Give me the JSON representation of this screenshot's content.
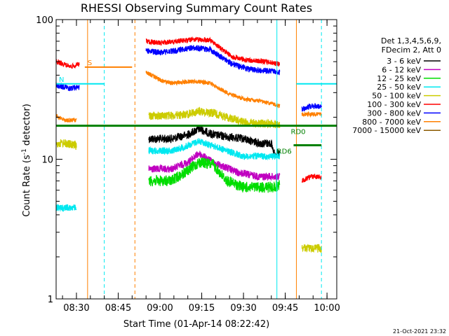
{
  "chart_data": {
    "type": "line",
    "title": "RHESSI Observing Summary Count Rates",
    "xlabel": "Start Time (01-Apr-14 08:22:42)",
    "ylabel_main": "Count Rate (s",
    "ylabel_superscript": "-1",
    "ylabel_close": " detector)",
    "timestamp": "21-Oct-2021 23:32",
    "y_scale": "log",
    "ylim": [
      1,
      100
    ],
    "y_ticks": [
      {
        "value": 1,
        "label": "1"
      },
      {
        "value": 10,
        "label": "10"
      },
      {
        "value": 100,
        "label": "100"
      }
    ],
    "xlim": [
      "08:22:42",
      "10:03:30"
    ],
    "x_ticks": [
      {
        "time": "08:30",
        "label": "08:30"
      },
      {
        "time": "08:45",
        "label": "08:45"
      },
      {
        "time": "09:00",
        "label": "09:00"
      },
      {
        "time": "09:15",
        "label": "09:15"
      },
      {
        "time": "09:30",
        "label": "09:30"
      },
      {
        "time": "09:45",
        "label": "09:45"
      },
      {
        "time": "10:00",
        "label": "10:00"
      }
    ],
    "legend_position": "right",
    "legend_header": [
      "Det 1,3,4,5,6,9,",
      "FDecim 2, Att 0"
    ],
    "series": [
      {
        "name": "3 - 6 keV",
        "color": "#000000",
        "noise": 1.0,
        "points": [
          [
            "08:54",
            null
          ],
          [
            "08:56",
            14
          ],
          [
            "09:04",
            14
          ],
          [
            "09:10",
            15
          ],
          [
            "09:14",
            16.5
          ],
          [
            "09:19",
            15
          ],
          [
            "09:24",
            14.5
          ],
          [
            "09:30",
            14
          ],
          [
            "09:36",
            13
          ],
          [
            "09:40",
            13
          ],
          [
            "09:41",
            11
          ],
          [
            "09:43",
            11
          ],
          [
            "09:44",
            null
          ]
        ]
      },
      {
        "name": "6 - 12 keV",
        "color": "#c000c0",
        "noise": 0.9,
        "points": [
          [
            "08:54",
            null
          ],
          [
            "08:56",
            8.5
          ],
          [
            "09:04",
            8.5
          ],
          [
            "09:10",
            9.5
          ],
          [
            "09:14",
            11
          ],
          [
            "09:19",
            9.5
          ],
          [
            "09:24",
            8.7
          ],
          [
            "09:28",
            8
          ],
          [
            "09:36",
            7.5
          ],
          [
            "09:40",
            7.5
          ],
          [
            "09:43",
            7.5
          ],
          [
            "09:44",
            null
          ]
        ]
      },
      {
        "name": "12 - 25 keV",
        "color": "#00dd00",
        "noise": 1.3,
        "points": [
          [
            "08:54",
            null
          ],
          [
            "08:56",
            7
          ],
          [
            "09:04",
            7
          ],
          [
            "09:10",
            8.3
          ],
          [
            "09:14",
            9.5
          ],
          [
            "09:19",
            9.2
          ],
          [
            "09:24",
            7
          ],
          [
            "09:30",
            6.3
          ],
          [
            "09:36",
            6.3
          ],
          [
            "09:40",
            6.3
          ],
          [
            "09:43",
            6.5
          ],
          [
            "09:44",
            null
          ]
        ]
      },
      {
        "name": "25 - 50 keV",
        "color": "#00e8f0",
        "noise": 0.8,
        "points": [
          [
            "08:22:42",
            4.5
          ],
          [
            "08:24",
            4.5
          ],
          [
            "08:30",
            4.5
          ],
          [
            "08:31",
            null
          ],
          [
            "08:54",
            null
          ],
          [
            "08:56",
            11.5
          ],
          [
            "09:04",
            11.5
          ],
          [
            "09:10",
            12.5
          ],
          [
            "09:14",
            13.5
          ],
          [
            "09:19",
            12.5
          ],
          [
            "09:24",
            11.5
          ],
          [
            "09:30",
            10.5
          ],
          [
            "09:36",
            10.5
          ],
          [
            "09:40",
            10.5
          ],
          [
            "09:43",
            10.5
          ],
          [
            "09:44",
            null
          ]
        ]
      },
      {
        "name": "50 - 100 keV",
        "color": "#cccc00",
        "noise": 1.0,
        "points": [
          [
            "08:22:42",
            13
          ],
          [
            "08:26",
            13
          ],
          [
            "08:30",
            12.5
          ],
          [
            "08:31",
            null
          ],
          [
            "08:54",
            null
          ],
          [
            "08:56",
            20.5
          ],
          [
            "09:04",
            20.5
          ],
          [
            "09:10",
            21
          ],
          [
            "09:14",
            22
          ],
          [
            "09:19",
            21.5
          ],
          [
            "09:24",
            20
          ],
          [
            "09:30",
            18.5
          ],
          [
            "09:36",
            18
          ],
          [
            "09:40",
            18
          ],
          [
            "09:43",
            17.5
          ],
          [
            "09:44",
            null
          ],
          [
            "09:50",
            null
          ],
          [
            "09:51",
            2.3
          ],
          [
            "09:54",
            2.3
          ],
          [
            "09:58",
            2.3
          ]
        ]
      },
      {
        "name": "100 - 300 keV",
        "color": "#ff0000",
        "noise": 0.6,
        "points": [
          [
            "08:22:42",
            50
          ],
          [
            "08:28",
            46
          ],
          [
            "08:31",
            48
          ],
          [
            "08:31:30",
            null
          ],
          [
            "08:54",
            null
          ],
          [
            "08:55",
            70
          ],
          [
            "09:00",
            68
          ],
          [
            "09:06",
            70
          ],
          [
            "09:12",
            72
          ],
          [
            "09:18",
            71
          ],
          [
            "09:22",
            62
          ],
          [
            "09:26",
            54
          ],
          [
            "09:32",
            51
          ],
          [
            "09:38",
            50
          ],
          [
            "09:43",
            48
          ],
          [
            "09:44",
            null
          ],
          [
            "09:50",
            null
          ],
          [
            "09:51",
            7
          ],
          [
            "09:54",
            7.5
          ],
          [
            "09:58",
            7.5
          ]
        ]
      },
      {
        "name": "300 - 800 keV",
        "color": "#0000ff",
        "noise": 0.7,
        "points": [
          [
            "08:22:42",
            34
          ],
          [
            "08:28",
            32
          ],
          [
            "08:31",
            33
          ],
          [
            "08:31:30",
            null
          ],
          [
            "08:54",
            null
          ],
          [
            "08:55",
            60
          ],
          [
            "09:00",
            58
          ],
          [
            "09:06",
            60
          ],
          [
            "09:12",
            63
          ],
          [
            "09:18",
            61
          ],
          [
            "09:22",
            54
          ],
          [
            "09:26",
            48
          ],
          [
            "09:32",
            44
          ],
          [
            "09:38",
            43
          ],
          [
            "09:43",
            42
          ],
          [
            "09:44",
            null
          ],
          [
            "09:50",
            null
          ],
          [
            "09:51",
            23
          ],
          [
            "09:54",
            24
          ],
          [
            "09:58",
            24
          ]
        ]
      },
      {
        "name": "800 - 7000 keV",
        "color": "#ff8000",
        "noise": 0.5,
        "points": [
          [
            "08:22:42",
            20.5
          ],
          [
            "08:26",
            19
          ],
          [
            "08:30",
            19
          ],
          [
            "08:31",
            null
          ],
          [
            "08:54",
            null
          ],
          [
            "08:55",
            42
          ],
          [
            "09:00",
            37
          ],
          [
            "09:04",
            35
          ],
          [
            "09:10",
            36
          ],
          [
            "09:14",
            36
          ],
          [
            "09:18",
            35
          ],
          [
            "09:24",
            30
          ],
          [
            "09:30",
            27
          ],
          [
            "09:36",
            26
          ],
          [
            "09:40",
            25
          ],
          [
            "09:43",
            24
          ],
          [
            "09:44",
            null
          ],
          [
            "09:50",
            null
          ],
          [
            "09:51",
            21
          ],
          [
            "09:54",
            21
          ],
          [
            "09:58",
            21
          ]
        ]
      },
      {
        "name": "7000 - 15000 keV",
        "color": "#8b5a00",
        "noise": 0.0,
        "points": []
      }
    ],
    "attenuator_bars": [
      {
        "label": "S",
        "color": "#ff8000",
        "start": "08:33",
        "end": "08:50",
        "y": 83
      }
    ],
    "saa_bars": [
      {
        "label": "N",
        "color": "#00e8f0",
        "start": "08:22:42",
        "end": "08:40",
        "y": 77
      },
      {
        "label": "",
        "color": "#00e8f0",
        "start": "09:49",
        "end": "10:03:30",
        "y": 77
      }
    ],
    "decimation_bars": [
      {
        "label": "RD0",
        "color": "#008000",
        "start": "08:22:42",
        "end": "10:03:30",
        "y": 62,
        "label_time": "09:47"
      },
      {
        "label": "RD6",
        "color": "#008000",
        "start": "09:48",
        "end": "09:58",
        "y": 55,
        "label_time": "09:42"
      }
    ],
    "vertical_markers": [
      {
        "time": "08:22:42",
        "color": "#00e8f0",
        "style": "solid"
      },
      {
        "time": "08:34",
        "color": "#ff8000",
        "style": "solid"
      },
      {
        "time": "08:40",
        "color": "#00e8f0",
        "style": "dashed"
      },
      {
        "time": "08:51",
        "color": "#ff8000",
        "style": "dashed"
      },
      {
        "time": "09:42",
        "color": "#00e8f0",
        "style": "solid"
      },
      {
        "time": "09:49",
        "color": "#ff8000",
        "style": "solid"
      },
      {
        "time": "09:58",
        "color": "#00e8f0",
        "style": "dashed"
      }
    ]
  }
}
